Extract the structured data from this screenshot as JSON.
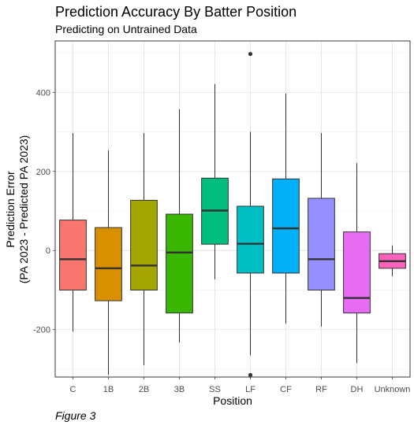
{
  "chart_data": {
    "type": "boxplot",
    "title": "Prediction Accuracy By Batter Position",
    "subtitle": "Predicting on Untrained Data",
    "xlabel": "Position",
    "ylabel": [
      "Prediction Error",
      "(PA 2023 - Predicted PA 2023)"
    ],
    "caption": "Figure 3",
    "ylim": [
      -320,
      530
    ],
    "y_ticks": [
      -200,
      0,
      200,
      400
    ],
    "grid": true,
    "legend": "none",
    "categories": [
      "C",
      "1B",
      "2B",
      "3B",
      "SS",
      "LF",
      "CF",
      "RF",
      "DH",
      "Unknown"
    ],
    "boxes": [
      {
        "category": "C",
        "lower_whisker": -205,
        "q1": -100,
        "median": -22,
        "q3": 77,
        "upper_whisker": 297,
        "outliers": [],
        "color": "#F8766D"
      },
      {
        "category": "1B",
        "lower_whisker": -315,
        "q1": -127,
        "median": -45,
        "q3": 58,
        "upper_whisker": 253,
        "outliers": [],
        "color": "#D89000"
      },
      {
        "category": "2B",
        "lower_whisker": -290,
        "q1": -100,
        "median": -38,
        "q3": 127,
        "upper_whisker": 297,
        "outliers": [],
        "color": "#A3A500"
      },
      {
        "category": "3B",
        "lower_whisker": -233,
        "q1": -158,
        "median": -5,
        "q3": 92,
        "upper_whisker": 357,
        "outliers": [],
        "color": "#39B600"
      },
      {
        "category": "SS",
        "lower_whisker": -73,
        "q1": 16,
        "median": 101,
        "q3": 183,
        "upper_whisker": 421,
        "outliers": [],
        "color": "#00BF7D"
      },
      {
        "category": "LF",
        "lower_whisker": -265,
        "q1": -57,
        "median": 17,
        "q3": 112,
        "upper_whisker": 300,
        "outliers": [
          497,
          -315
        ],
        "color": "#00BFC4"
      },
      {
        "category": "CF",
        "lower_whisker": -185,
        "q1": -57,
        "median": 56,
        "q3": 181,
        "upper_whisker": 397,
        "outliers": [],
        "color": "#00B0F6"
      },
      {
        "category": "RF",
        "lower_whisker": -192,
        "q1": -100,
        "median": -22,
        "q3": 132,
        "upper_whisker": 297,
        "outliers": [],
        "color": "#9590FF"
      },
      {
        "category": "DH",
        "lower_whisker": -285,
        "q1": -158,
        "median": -120,
        "q3": 47,
        "upper_whisker": 221,
        "outliers": [],
        "color": "#E76BF3"
      },
      {
        "category": "Unknown",
        "lower_whisker": -65,
        "q1": -45,
        "median": -27,
        "q3": -8,
        "upper_whisker": 13,
        "outliers": [],
        "color": "#FF62BC"
      }
    ]
  }
}
